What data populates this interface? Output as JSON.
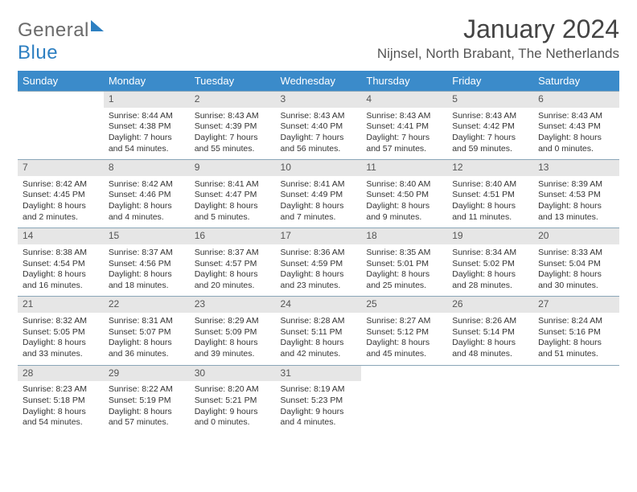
{
  "logo": {
    "text1": "General",
    "text2": "Blue"
  },
  "title": "January 2024",
  "location": "Nijnsel, North Brabant, The Netherlands",
  "colors": {
    "header_bg": "#3b8bca",
    "header_fg": "#ffffff",
    "daynum_bg": "#e6e6e6",
    "border": "#8aa6b8",
    "text": "#333333"
  },
  "day_headers": [
    "Sunday",
    "Monday",
    "Tuesday",
    "Wednesday",
    "Thursday",
    "Friday",
    "Saturday"
  ],
  "weeks": [
    [
      null,
      {
        "n": "1",
        "sunrise": "8:44 AM",
        "sunset": "4:38 PM",
        "daylight": "7 hours and 54 minutes."
      },
      {
        "n": "2",
        "sunrise": "8:43 AM",
        "sunset": "4:39 PM",
        "daylight": "7 hours and 55 minutes."
      },
      {
        "n": "3",
        "sunrise": "8:43 AM",
        "sunset": "4:40 PM",
        "daylight": "7 hours and 56 minutes."
      },
      {
        "n": "4",
        "sunrise": "8:43 AM",
        "sunset": "4:41 PM",
        "daylight": "7 hours and 57 minutes."
      },
      {
        "n": "5",
        "sunrise": "8:43 AM",
        "sunset": "4:42 PM",
        "daylight": "7 hours and 59 minutes."
      },
      {
        "n": "6",
        "sunrise": "8:43 AM",
        "sunset": "4:43 PM",
        "daylight": "8 hours and 0 minutes."
      }
    ],
    [
      {
        "n": "7",
        "sunrise": "8:42 AM",
        "sunset": "4:45 PM",
        "daylight": "8 hours and 2 minutes."
      },
      {
        "n": "8",
        "sunrise": "8:42 AM",
        "sunset": "4:46 PM",
        "daylight": "8 hours and 4 minutes."
      },
      {
        "n": "9",
        "sunrise": "8:41 AM",
        "sunset": "4:47 PM",
        "daylight": "8 hours and 5 minutes."
      },
      {
        "n": "10",
        "sunrise": "8:41 AM",
        "sunset": "4:49 PM",
        "daylight": "8 hours and 7 minutes."
      },
      {
        "n": "11",
        "sunrise": "8:40 AM",
        "sunset": "4:50 PM",
        "daylight": "8 hours and 9 minutes."
      },
      {
        "n": "12",
        "sunrise": "8:40 AM",
        "sunset": "4:51 PM",
        "daylight": "8 hours and 11 minutes."
      },
      {
        "n": "13",
        "sunrise": "8:39 AM",
        "sunset": "4:53 PM",
        "daylight": "8 hours and 13 minutes."
      }
    ],
    [
      {
        "n": "14",
        "sunrise": "8:38 AM",
        "sunset": "4:54 PM",
        "daylight": "8 hours and 16 minutes."
      },
      {
        "n": "15",
        "sunrise": "8:37 AM",
        "sunset": "4:56 PM",
        "daylight": "8 hours and 18 minutes."
      },
      {
        "n": "16",
        "sunrise": "8:37 AM",
        "sunset": "4:57 PM",
        "daylight": "8 hours and 20 minutes."
      },
      {
        "n": "17",
        "sunrise": "8:36 AM",
        "sunset": "4:59 PM",
        "daylight": "8 hours and 23 minutes."
      },
      {
        "n": "18",
        "sunrise": "8:35 AM",
        "sunset": "5:01 PM",
        "daylight": "8 hours and 25 minutes."
      },
      {
        "n": "19",
        "sunrise": "8:34 AM",
        "sunset": "5:02 PM",
        "daylight": "8 hours and 28 minutes."
      },
      {
        "n": "20",
        "sunrise": "8:33 AM",
        "sunset": "5:04 PM",
        "daylight": "8 hours and 30 minutes."
      }
    ],
    [
      {
        "n": "21",
        "sunrise": "8:32 AM",
        "sunset": "5:05 PM",
        "daylight": "8 hours and 33 minutes."
      },
      {
        "n": "22",
        "sunrise": "8:31 AM",
        "sunset": "5:07 PM",
        "daylight": "8 hours and 36 minutes."
      },
      {
        "n": "23",
        "sunrise": "8:29 AM",
        "sunset": "5:09 PM",
        "daylight": "8 hours and 39 minutes."
      },
      {
        "n": "24",
        "sunrise": "8:28 AM",
        "sunset": "5:11 PM",
        "daylight": "8 hours and 42 minutes."
      },
      {
        "n": "25",
        "sunrise": "8:27 AM",
        "sunset": "5:12 PM",
        "daylight": "8 hours and 45 minutes."
      },
      {
        "n": "26",
        "sunrise": "8:26 AM",
        "sunset": "5:14 PM",
        "daylight": "8 hours and 48 minutes."
      },
      {
        "n": "27",
        "sunrise": "8:24 AM",
        "sunset": "5:16 PM",
        "daylight": "8 hours and 51 minutes."
      }
    ],
    [
      {
        "n": "28",
        "sunrise": "8:23 AM",
        "sunset": "5:18 PM",
        "daylight": "8 hours and 54 minutes."
      },
      {
        "n": "29",
        "sunrise": "8:22 AM",
        "sunset": "5:19 PM",
        "daylight": "8 hours and 57 minutes."
      },
      {
        "n": "30",
        "sunrise": "8:20 AM",
        "sunset": "5:21 PM",
        "daylight": "9 hours and 0 minutes."
      },
      {
        "n": "31",
        "sunrise": "8:19 AM",
        "sunset": "5:23 PM",
        "daylight": "9 hours and 4 minutes."
      },
      null,
      null,
      null
    ]
  ],
  "labels": {
    "sunrise": "Sunrise:",
    "sunset": "Sunset:",
    "daylight": "Daylight:"
  }
}
